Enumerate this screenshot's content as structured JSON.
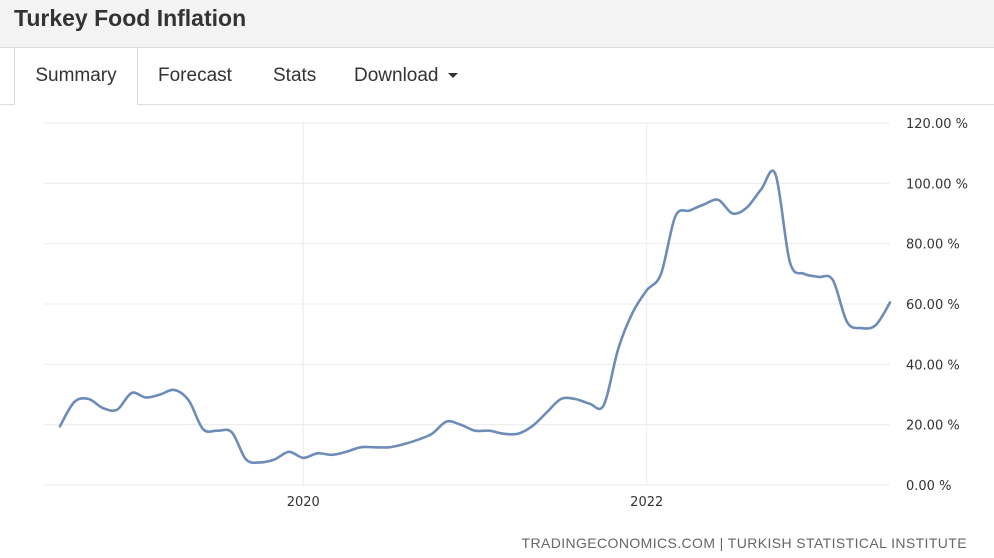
{
  "page": {
    "title": "Turkey Food Inflation"
  },
  "tabs": [
    {
      "label": "Summary",
      "active": true
    },
    {
      "label": "Forecast",
      "active": false
    },
    {
      "label": "Stats",
      "active": false
    },
    {
      "label": "Download",
      "active": false,
      "dropdown": true
    }
  ],
  "source": "TRADINGECONOMICS.COM | TURKISH STATISTICAL INSTITUTE",
  "colors": {
    "line": "#6d8cb8",
    "grid": "#ececec",
    "title_bar": "#f3f3f3"
  },
  "icons": {
    "download_caret": "caret-down-icon"
  },
  "chart_data": {
    "type": "line",
    "title": "",
    "xlabel": "",
    "ylabel": "",
    "ylim": [
      0,
      120
    ],
    "y_ticks": [
      0,
      20,
      40,
      60,
      80,
      100,
      120
    ],
    "y_tick_labels": [
      "0.00 %",
      "20.00 %",
      "40.00 %",
      "60.00 %",
      "80.00 %",
      "100.00 %",
      "120.00 %"
    ],
    "x_tick_labels": [
      {
        "label": "2020",
        "x": "2020-01"
      },
      {
        "label": "2022",
        "x": "2022-01"
      }
    ],
    "x_range": [
      "2018-08",
      "2023-06"
    ],
    "y_axis_position": "right",
    "grid": true,
    "legend": "none",
    "series": [
      {
        "x": [
          "2018-08",
          "2018-09",
          "2018-10",
          "2018-11",
          "2018-12",
          "2019-01",
          "2019-02",
          "2019-03",
          "2019-04",
          "2019-05",
          "2019-06",
          "2019-07",
          "2019-08",
          "2019-09",
          "2019-10",
          "2019-11",
          "2019-12",
          "2020-01",
          "2020-02",
          "2020-03",
          "2020-04",
          "2020-05",
          "2020-06",
          "2020-07",
          "2020-08",
          "2020-09",
          "2020-10",
          "2020-11",
          "2020-12",
          "2021-01",
          "2021-02",
          "2021-03",
          "2021-04",
          "2021-05",
          "2021-06",
          "2021-07",
          "2021-08",
          "2021-09",
          "2021-10",
          "2021-11",
          "2021-12",
          "2022-01",
          "2022-02",
          "2022-03",
          "2022-04",
          "2022-05",
          "2022-06",
          "2022-07",
          "2022-08",
          "2022-09",
          "2022-10",
          "2022-11",
          "2022-12",
          "2023-01",
          "2023-02",
          "2023-03",
          "2023-04",
          "2023-05",
          "2023-06"
        ],
        "values": [
          19.5,
          27.5,
          28.5,
          25.5,
          25,
          30.5,
          29,
          30,
          31.5,
          28,
          18.5,
          18,
          17.5,
          8.5,
          7.5,
          8.5,
          11,
          9,
          10.5,
          10,
          11,
          12.5,
          12.5,
          12.5,
          13.5,
          15,
          17,
          21,
          20,
          18,
          18,
          17,
          17,
          19.5,
          24,
          28.5,
          28.5,
          27,
          26.5,
          45,
          57,
          64.5,
          70,
          89,
          91,
          93,
          94.5,
          90,
          92,
          98,
          103,
          74,
          70,
          69,
          68,
          54,
          52,
          53,
          60.5
        ]
      }
    ]
  }
}
